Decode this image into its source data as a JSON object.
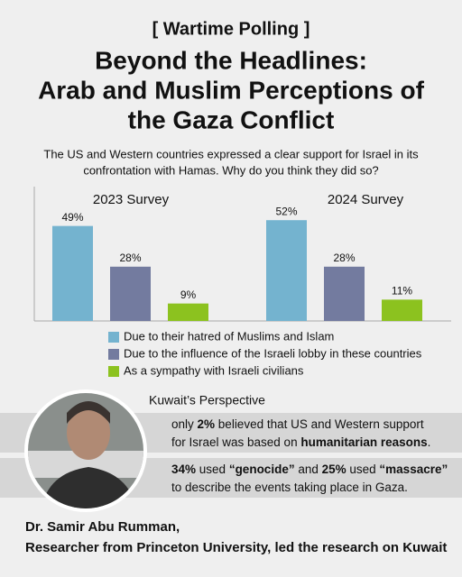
{
  "header": {
    "tag": "[ Wartime Polling ]",
    "title": [
      "Beyond the Headlines:",
      "Arab and Muslim Perceptions of",
      "the Gaza Conflict"
    ],
    "question": [
      "The US and Western countries expressed a clear support for Israel in its",
      "confrontation with Hamas. Why do you think they did so?"
    ]
  },
  "chart_data": {
    "type": "bar",
    "categories": [
      "2023 Survey",
      "2024 Survey"
    ],
    "series": [
      {
        "name": "Due to their hatred of Muslims and Islam",
        "color": "#74b3cf",
        "values": [
          49,
          52
        ],
        "value_labels": [
          "49%",
          "52%"
        ]
      },
      {
        "name": "Due to the influence of the Israeli lobby in these countries",
        "color": "#737b9f",
        "values": [
          28,
          28
        ],
        "value_labels": [
          "28%",
          "28%"
        ]
      },
      {
        "name": "As a sympathy with Israeli civilians",
        "color": "#8cc21f",
        "values": [
          9,
          11
        ],
        "value_labels": [
          "9%",
          "11%"
        ]
      }
    ]
  },
  "perspective": {
    "title": "Kuwait’s Perspective",
    "items": [
      {
        "lines": [
          [
            "only ",
            "2%",
            " believed that US and Western support"
          ],
          [
            "for Israel was based on ",
            "humanitarian reasons",
            "."
          ]
        ]
      },
      {
        "lines": [
          [
            "",
            "34%",
            " used ",
            "“genocide”",
            " and ",
            "25%",
            " used ",
            "“massacre”"
          ],
          [
            "to describe the events taking place in Gaza."
          ]
        ]
      }
    ]
  },
  "footer": [
    "Dr. Samir Abu Rumman,",
    "Researcher from Princeton University, led the research on Kuwait"
  ]
}
